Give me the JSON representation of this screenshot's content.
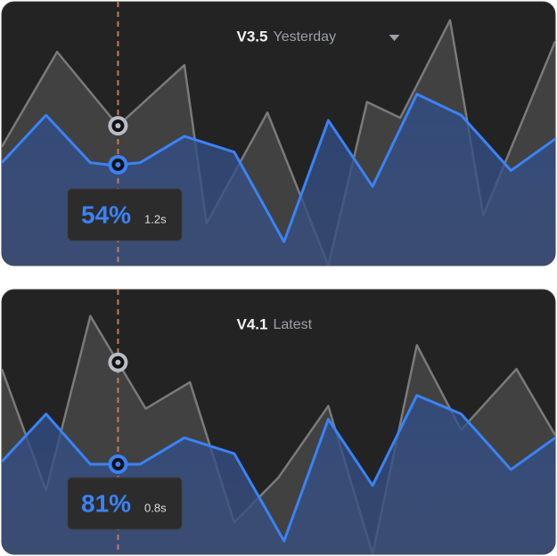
{
  "chart_data": [
    {
      "type": "area",
      "title": "V3.5",
      "subtitle": "Yesterday",
      "tooltip_value": "54%",
      "tooltip_time": "1.2s",
      "hover_x": 21,
      "xlim": [
        0,
        100
      ],
      "ylim": [
        0,
        100
      ],
      "series": [
        {
          "color": "#7a7a7a",
          "x": [
            0,
            10,
            21,
            33,
            37,
            48,
            59,
            66,
            72,
            81,
            87,
            100
          ],
          "values": [
            45,
            81,
            53,
            76,
            16,
            58,
            0,
            62,
            56,
            93,
            19,
            85
          ]
        },
        {
          "color": "#3b82f6",
          "x": [
            0,
            8,
            16,
            20,
            25,
            33,
            42,
            51,
            59,
            67,
            75,
            83,
            92,
            100
          ],
          "values": [
            39,
            57,
            39,
            38,
            39,
            49,
            43,
            9,
            55,
            30,
            65,
            57,
            36,
            48
          ]
        }
      ]
    },
    {
      "type": "area",
      "title": "V4.1",
      "subtitle": "Latest",
      "tooltip_value": "81%",
      "tooltip_time": "0.8s",
      "hover_x": 21,
      "xlim": [
        0,
        100
      ],
      "ylim": [
        0,
        100
      ],
      "series": [
        {
          "color": "#7a7a7a",
          "x": [
            0,
            8,
            16,
            26,
            34,
            42,
            50,
            59,
            67,
            75,
            83,
            93,
            100
          ],
          "values": [
            70,
            24,
            90,
            55,
            65,
            12,
            29,
            56,
            0,
            79,
            47,
            70,
            45
          ]
        },
        {
          "color": "#3b82f6",
          "x": [
            0,
            8,
            16,
            20,
            25,
            33,
            42,
            51,
            59,
            67,
            75,
            83,
            92,
            100
          ],
          "values": [
            35,
            53,
            34,
            34,
            34,
            44,
            38,
            5,
            51,
            26,
            60,
            53,
            32,
            44
          ]
        }
      ]
    }
  ]
}
